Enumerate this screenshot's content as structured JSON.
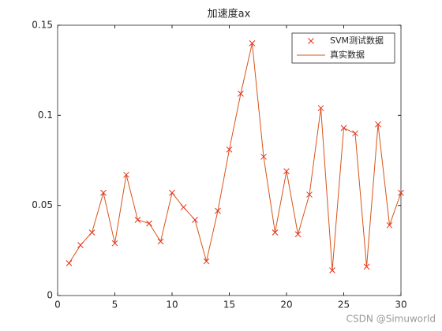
{
  "chart_data": {
    "type": "line",
    "title": "加速度ax",
    "x": [
      1,
      2,
      3,
      4,
      5,
      6,
      7,
      8,
      9,
      10,
      11,
      12,
      13,
      14,
      15,
      16,
      17,
      18,
      19,
      20,
      21,
      22,
      23,
      24,
      25,
      26,
      27,
      28,
      29,
      30
    ],
    "series": [
      {
        "name": "SVM测试数据",
        "color": "#e8301c",
        "marker": "x",
        "values": [
          0.018,
          0.028,
          0.035,
          0.057,
          0.029,
          0.067,
          0.042,
          0.04,
          0.03,
          0.057,
          0.049,
          0.042,
          0.019,
          0.047,
          0.081,
          0.112,
          0.14,
          0.077,
          0.035,
          0.069,
          0.034,
          0.056,
          0.104,
          0.014,
          0.093,
          0.09,
          0.016,
          0.095,
          0.039,
          0.057
        ]
      },
      {
        "name": "真实数据",
        "color": "#d95319",
        "marker": "none",
        "values": [
          0.018,
          0.028,
          0.035,
          0.057,
          0.029,
          0.067,
          0.042,
          0.04,
          0.03,
          0.057,
          0.049,
          0.042,
          0.019,
          0.047,
          0.081,
          0.112,
          0.14,
          0.077,
          0.035,
          0.069,
          0.034,
          0.056,
          0.104,
          0.014,
          0.093,
          0.09,
          0.016,
          0.095,
          0.039,
          0.057
        ]
      }
    ],
    "xlim": [
      0,
      30
    ],
    "xticks": [
      0,
      5,
      10,
      15,
      20,
      25,
      30
    ],
    "ylim": [
      0,
      0.15
    ],
    "yticks": [
      0,
      0.05,
      0.1,
      0.15
    ],
    "grid": false,
    "legend": "northeast",
    "watermark": "CSDN @Simuworld"
  }
}
